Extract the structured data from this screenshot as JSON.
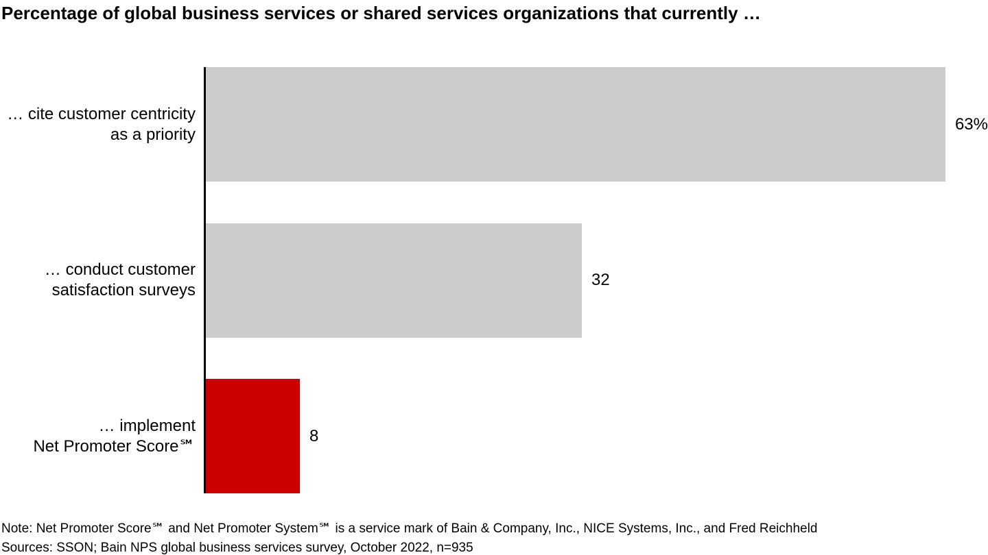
{
  "title": "Percentage of global business services or shared services organizations that currently …",
  "chart_data": {
    "type": "bar",
    "orientation": "horizontal",
    "title": "Percentage of global business services or shared services organizations that currently …",
    "categories": [
      "… cite customer centricity\nas a priority",
      "… conduct customer\nsatisfaction surveys",
      "… implement\nNet Promoter Score℠"
    ],
    "values": [
      63,
      32,
      8
    ],
    "value_labels": [
      "63%",
      "32",
      "8"
    ],
    "bar_colors": [
      "#CCCCCC",
      "#CCCCCC",
      "#CC0000"
    ],
    "xlim": [
      0,
      63
    ],
    "xlabel": "",
    "ylabel": "",
    "grid": false,
    "legend": false,
    "axis_color": "#000000"
  },
  "colors": {
    "bar_gray": "#CCCCCC",
    "bar_red": "#CC0000",
    "axis": "#000000",
    "background": "#FFFFFF",
    "text": "#000000"
  },
  "footer": {
    "note": "Note: Net Promoter Score℠ and Net Promoter System℠ is a service mark of Bain & Company, Inc., NICE Systems, Inc., and Fred Reichheld",
    "sources": "Sources: SSON; Bain NPS global business services survey, October 2022, n=935"
  }
}
